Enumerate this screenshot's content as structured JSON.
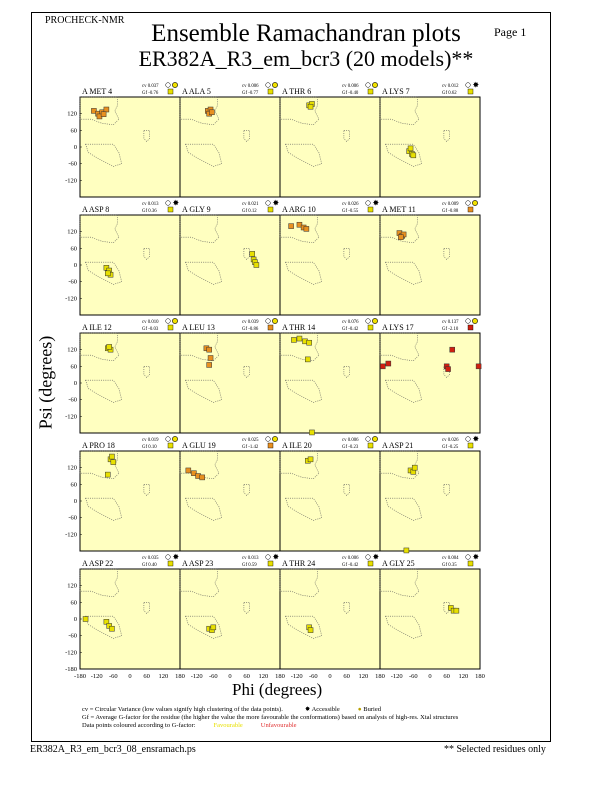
{
  "header": {
    "program": "PROCHECK-NMR",
    "page": "Page  1",
    "title": "Ensemble Ramachandran plots",
    "subtitle": "ER382A_R3_em_bcr3 (20 models)**"
  },
  "legend": {
    "cv": "cv = Circular Variance (low values signify high clustering of the data points).",
    "accessible": "Accessible",
    "buried": "Buried",
    "gf": "Gf = Average G-factor for the residue (the higher the value the more favourable the conformations) based on analysis of high-res. Xtal structures",
    "coloured": "Data points coloured according to G-factor:",
    "favourable": "Favourable",
    "unfavourable": "Unfavourable"
  },
  "footer": {
    "file": "ER382A_R3_em_bcr3_08_ensramach.ps",
    "note": "** Selected residues only"
  },
  "colors": {
    "panel": "#ffffc0",
    "fav": "#e8e000",
    "mid": "#e89020",
    "unfav": "#d02010"
  },
  "chart_data": {
    "type": "scatter",
    "xlabel": "Phi (degrees)",
    "ylabel": "Psi (degrees)",
    "xlim": [
      -180,
      180
    ],
    "ylim": [
      -180,
      180
    ],
    "xticks": [
      "-180",
      "-120",
      "-60",
      "0",
      "60",
      "120",
      "180"
    ],
    "yticks": [
      "120",
      "60",
      "0",
      "-60",
      "-120"
    ],
    "yticks_bottom": [
      "-180"
    ],
    "panels": [
      {
        "label": "A MET 4",
        "cv": "cv 0.037",
        "gf": "Gf -0.76",
        "access": "buried",
        "gfcol": "fav",
        "points": [
          [
            -130,
            130
          ],
          [
            -115,
            120
          ],
          [
            -100,
            125
          ],
          [
            -85,
            135
          ],
          [
            -110,
            110
          ],
          [
            -95,
            118
          ]
        ],
        "col": "mid"
      },
      {
        "label": "A ALA 5",
        "cv": "cv 0.006",
        "gf": "Gf -0.77",
        "access": "buried",
        "gfcol": "fav",
        "points": [
          [
            -80,
            130
          ],
          [
            -70,
            135
          ],
          [
            -75,
            120
          ],
          [
            -65,
            125
          ]
        ],
        "col": "mid"
      },
      {
        "label": "A THR 6",
        "cv": "cv 0.006",
        "gf": "Gf -0.40",
        "access": "buried",
        "gfcol": "fav",
        "points": [
          [
            -75,
            150
          ],
          [
            -65,
            155
          ],
          [
            -70,
            145
          ]
        ],
        "col": "fav"
      },
      {
        "label": "A LYS 7",
        "cv": "cv 0.012",
        "gf": "Gf 0.62",
        "access": "accessible",
        "gfcol": "fav",
        "points": [
          [
            -75,
            -15
          ],
          [
            -65,
            -25
          ],
          [
            -70,
            -5
          ],
          [
            -60,
            -30
          ]
        ],
        "col": "fav"
      },
      {
        "label": "A ASP 8",
        "cv": "cv 0.013",
        "gf": "Gf 0.36",
        "access": "accessible",
        "gfcol": "fav",
        "points": [
          [
            -85,
            -10
          ],
          [
            -75,
            -20
          ],
          [
            -70,
            -35
          ],
          [
            -80,
            -30
          ]
        ],
        "col": "fav"
      },
      {
        "label": "A GLY 9",
        "cv": "cv 0.021",
        "gf": "Gf 0.12",
        "access": "accessible",
        "gfcol": "fav",
        "points": [
          [
            80,
            40
          ],
          [
            85,
            20
          ],
          [
            90,
            10
          ],
          [
            95,
            0
          ]
        ],
        "col": "fav"
      },
      {
        "label": "A ARG 10",
        "cv": "cv 0.026",
        "gf": "Gf -0.55",
        "access": "accessible",
        "gfcol": "fav",
        "points": [
          [
            -140,
            140
          ],
          [
            -110,
            145
          ],
          [
            -95,
            135
          ],
          [
            -85,
            130
          ]
        ],
        "col": "mid"
      },
      {
        "label": "A MET 11",
        "cv": "cv 0.009",
        "gf": "Gf -0.88",
        "access": "buried",
        "gfcol": "mid",
        "points": [
          [
            -110,
            115
          ],
          [
            -100,
            105
          ],
          [
            -95,
            110
          ],
          [
            -105,
            100
          ]
        ],
        "col": "mid"
      },
      {
        "label": "A ILE 12",
        "cv": "cv 0.010",
        "gf": "Gf -0.03",
        "access": "buried",
        "gfcol": "fav",
        "points": [
          [
            -80,
            125
          ],
          [
            -70,
            120
          ],
          [
            -75,
            130
          ]
        ],
        "col": "fav"
      },
      {
        "label": "A LEU 13",
        "cv": "cv 0.039",
        "gf": "Gf -0.86",
        "access": "buried",
        "gfcol": "mid",
        "points": [
          [
            -85,
            125
          ],
          [
            -75,
            120
          ],
          [
            -70,
            90
          ],
          [
            -75,
            65
          ]
        ],
        "col": "mid"
      },
      {
        "label": "A THR 14",
        "cv": "cv 0.076",
        "gf": "Gf -0.42",
        "access": "buried",
        "gfcol": "fav",
        "points": [
          [
            -130,
            155
          ],
          [
            -110,
            160
          ],
          [
            -90,
            150
          ],
          [
            -75,
            145
          ],
          [
            -80,
            85
          ],
          [
            -65,
            -178
          ]
        ],
        "col": "fav"
      },
      {
        "label": "A LYS 17",
        "cv": "cv 0.137",
        "gf": "Gf -2.10",
        "access": "buried",
        "gfcol": "unfav",
        "points": [
          [
            -170,
            60
          ],
          [
            -150,
            70
          ],
          [
            60,
            60
          ],
          [
            65,
            50
          ],
          [
            80,
            120
          ],
          [
            175,
            60
          ]
        ],
        "col": "unfav"
      },
      {
        "label": "A PRO 18",
        "cv": "cv 0.019",
        "gf": "Gf 0.10",
        "access": "buried",
        "gfcol": "fav",
        "points": [
          [
            -70,
            150
          ],
          [
            -60,
            140
          ],
          [
            -65,
            160
          ],
          [
            -80,
            95
          ]
        ],
        "col": "fav"
      },
      {
        "label": "A GLU 19",
        "cv": "cv 0.025",
        "gf": "Gf -1.42",
        "access": "buried",
        "gfcol": "mid",
        "points": [
          [
            -150,
            110
          ],
          [
            -130,
            100
          ],
          [
            -115,
            90
          ],
          [
            -100,
            85
          ]
        ],
        "col": "mid"
      },
      {
        "label": "A ILE 20",
        "cv": "cv 0.006",
        "gf": "Gf -0.23",
        "access": "buried",
        "gfcol": "fav",
        "points": [
          [
            -80,
            145
          ],
          [
            -70,
            150
          ]
        ],
        "col": "fav"
      },
      {
        "label": "A ASP 21",
        "cv": "cv 0.026",
        "gf": "Gf -0.25",
        "access": "accessible",
        "gfcol": "fav",
        "points": [
          [
            -70,
            110
          ],
          [
            -60,
            105
          ],
          [
            -55,
            120
          ],
          [
            -85,
            -178
          ]
        ],
        "col": "fav"
      },
      {
        "label": "A ASP 22",
        "cv": "cv 0.035",
        "gf": "Gf 0.40",
        "access": "accessible",
        "gfcol": "fav",
        "points": [
          [
            -160,
            0
          ],
          [
            -85,
            -10
          ],
          [
            -75,
            -25
          ],
          [
            -65,
            -35
          ]
        ],
        "col": "fav"
      },
      {
        "label": "A ASP 23",
        "cv": "cv 0.013",
        "gf": "Gf 0.59",
        "access": "accessible",
        "gfcol": "fav",
        "points": [
          [
            -75,
            -35
          ],
          [
            -65,
            -40
          ],
          [
            -60,
            -30
          ]
        ],
        "col": "fav"
      },
      {
        "label": "A THR 24",
        "cv": "cv 0.006",
        "gf": "Gf -0.42",
        "access": "accessible",
        "gfcol": "fav",
        "points": [
          [
            -75,
            -30
          ],
          [
            -70,
            -40
          ]
        ],
        "col": "fav"
      },
      {
        "label": "A GLY 25",
        "cv": "cv 0.004",
        "gf": "Gf 0.35",
        "access": "accessible",
        "gfcol": "fav",
        "points": [
          [
            75,
            40
          ],
          [
            85,
            30
          ],
          [
            95,
            30
          ]
        ],
        "col": "fav"
      }
    ]
  }
}
